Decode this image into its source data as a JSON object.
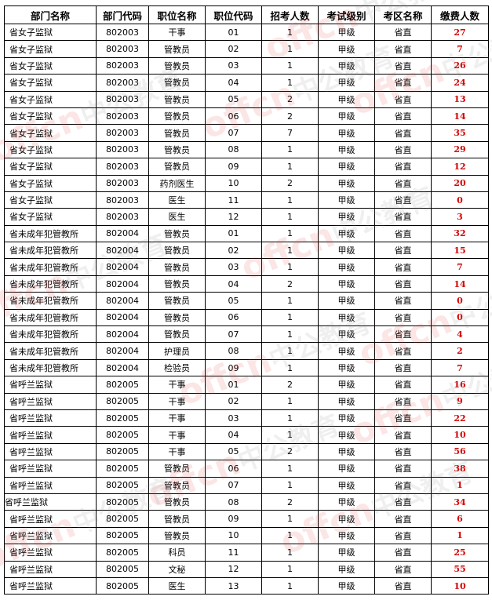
{
  "headers": [
    "部门名称",
    "部门代码",
    "职位名称",
    "职位代码",
    "招考人数",
    "考试级别",
    "考区名称",
    "缴费人数"
  ],
  "rows": [
    [
      "省女子监狱",
      "802003",
      "干事",
      "01",
      "1",
      "甲级",
      "省直",
      "27"
    ],
    [
      "省女子监狱",
      "802003",
      "管教员",
      "02",
      "1",
      "甲级",
      "省直",
      "7"
    ],
    [
      "省女子监狱",
      "802003",
      "管教员",
      "03",
      "1",
      "甲级",
      "省直",
      "26"
    ],
    [
      "省女子监狱",
      "802003",
      "管教员",
      "04",
      "1",
      "甲级",
      "省直",
      "24"
    ],
    [
      "省女子监狱",
      "802003",
      "管教员",
      "05",
      "2",
      "甲级",
      "省直",
      "13"
    ],
    [
      "省女子监狱",
      "802003",
      "管教员",
      "06",
      "2",
      "甲级",
      "省直",
      "14"
    ],
    [
      "省女子监狱",
      "802003",
      "管教员",
      "07",
      "7",
      "甲级",
      "省直",
      "35"
    ],
    [
      "省女子监狱",
      "802003",
      "管教员",
      "08",
      "1",
      "甲级",
      "省直",
      "29"
    ],
    [
      "省女子监狱",
      "802003",
      "管教员",
      "09",
      "1",
      "甲级",
      "省直",
      "12"
    ],
    [
      "省女子监狱",
      "802003",
      "药剂医生",
      "10",
      "2",
      "甲级",
      "省直",
      "20"
    ],
    [
      "省女子监狱",
      "802003",
      "医生",
      "11",
      "1",
      "甲级",
      "省直",
      "0"
    ],
    [
      "省女子监狱",
      "802003",
      "医生",
      "12",
      "1",
      "甲级",
      "省直",
      "3"
    ],
    [
      "省未成年犯管教所",
      "802004",
      "管教员",
      "01",
      "1",
      "甲级",
      "省直",
      "32"
    ],
    [
      "省未成年犯管教所",
      "802004",
      "管教员",
      "02",
      "1",
      "甲级",
      "省直",
      "15"
    ],
    [
      "省未成年犯管教所",
      "802004",
      "管教员",
      "03",
      "1",
      "甲级",
      "省直",
      "7"
    ],
    [
      "省未成年犯管教所",
      "802004",
      "管教员",
      "04",
      "2",
      "甲级",
      "省直",
      "14"
    ],
    [
      "省未成年犯管教所",
      "802004",
      "管教员",
      "05",
      "1",
      "甲级",
      "省直",
      "0"
    ],
    [
      "省未成年犯管教所",
      "802004",
      "管教员",
      "06",
      "1",
      "甲级",
      "省直",
      "0"
    ],
    [
      "省未成年犯管教所",
      "802004",
      "管教员",
      "07",
      "1",
      "甲级",
      "省直",
      "4"
    ],
    [
      "省未成年犯管教所",
      "802004",
      "护理员",
      "08",
      "1",
      "甲级",
      "省直",
      "2"
    ],
    [
      "省未成年犯管教所",
      "802004",
      "检验员",
      "09",
      "1",
      "甲级",
      "省直",
      "7"
    ],
    [
      "省呼兰监狱",
      "802005",
      "干事",
      "01",
      "2",
      "甲级",
      "省直",
      "16"
    ],
    [
      "省呼兰监狱",
      "802005",
      "干事",
      "02",
      "1",
      "甲级",
      "省直",
      "9"
    ],
    [
      "省呼兰监狱",
      "802005",
      "干事",
      "03",
      "1",
      "甲级",
      "省直",
      "22"
    ],
    [
      "省呼兰监狱",
      "802005",
      "干事",
      "04",
      "1",
      "甲级",
      "省直",
      "10"
    ],
    [
      "省呼兰监狱",
      "802005",
      "干事",
      "05",
      "2",
      "甲级",
      "省直",
      "56"
    ],
    [
      "省呼兰监狱",
      "802005",
      "管教员",
      "06",
      "1",
      "甲级",
      "省直",
      "38"
    ],
    [
      "省呼兰监狱",
      "802005",
      "管教员",
      "07",
      "1",
      "甲级",
      "省直",
      "1"
    ],
    [
      "省呼兰监狱",
      "802005",
      "管教员",
      "08",
      "2",
      "甲级",
      "省直",
      "34"
    ],
    [
      "省呼兰监狱",
      "802005",
      "管教员",
      "09",
      "1",
      "甲级",
      "省直",
      "6"
    ],
    [
      "省呼兰监狱",
      "802005",
      "管教员",
      "10",
      "1",
      "甲级",
      "省直",
      "1"
    ],
    [
      "省呼兰监狱",
      "802005",
      "科员",
      "11",
      "1",
      "甲级",
      "省直",
      "25"
    ],
    [
      "省呼兰监狱",
      "802005",
      "文秘",
      "12",
      "1",
      "甲级",
      "省直",
      "55"
    ],
    [
      "省呼兰监狱",
      "802005",
      "医生",
      "13",
      "1",
      "甲级",
      "省直",
      "10"
    ]
  ],
  "watermark": {
    "brand": "offcn",
    "name": "中公教育"
  },
  "colors": {
    "paid_count": "#d60000"
  }
}
